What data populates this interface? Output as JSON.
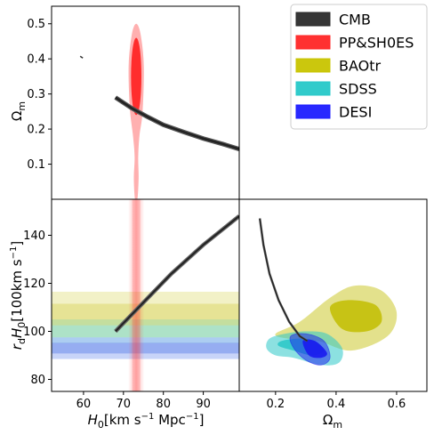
{
  "chart_data": [
    {
      "panel": "top-left",
      "type": "contour",
      "xlim": [
        52,
        99
      ],
      "ylim": [
        0.0,
        0.55
      ],
      "yticks": [
        0.1,
        0.2,
        0.3,
        0.4,
        0.5
      ],
      "ytick_labels": [
        "0.1",
        "0.2",
        "0.3",
        "0.4",
        "0.5"
      ],
      "ylabel_main": "Ω",
      "ylabel_sub": "m",
      "series": [
        {
          "name": "CMB",
          "kind": "band",
          "center": [
            [
              68,
              0.29
            ],
            [
              72,
              0.26
            ],
            [
              76,
              0.235
            ],
            [
              80,
              0.212
            ],
            [
              85,
              0.192
            ],
            [
              90,
              0.173
            ],
            [
              95,
              0.157
            ],
            [
              99,
              0.143
            ]
          ],
          "halfwidth": 0.004
        },
        {
          "name": "PP&SH0ES",
          "kind": "filled",
          "ellipse_68": {
            "cx": 73.2,
            "cy": 0.35,
            "rx": 1.3,
            "ry": 0.11
          },
          "outer_95": [
            [
              73.2,
              0.5
            ],
            [
              74.3,
              0.47
            ],
            [
              75.1,
              0.38
            ],
            [
              74.8,
              0.25
            ],
            [
              74.0,
              0.18
            ],
            [
              73.7,
              0.12
            ],
            [
              73.8,
              0.06
            ],
            [
              73.5,
              0.0
            ],
            [
              72.9,
              0.0
            ],
            [
              72.6,
              0.06
            ],
            [
              72.8,
              0.12
            ],
            [
              72.4,
              0.18
            ],
            [
              71.6,
              0.26
            ],
            [
              71.3,
              0.38
            ],
            [
              72.1,
              0.47
            ]
          ]
        }
      ],
      "annotations_points": [
        [
          59.5,
          0.405
        ]
      ]
    },
    {
      "panel": "bottom-left",
      "type": "contour",
      "xlim": [
        52,
        99
      ],
      "ylim": [
        75,
        155
      ],
      "xticks": [
        60,
        70,
        80,
        90
      ],
      "xtick_labels": [
        "60",
        "70",
        "80",
        "90"
      ],
      "yticks": [
        80,
        100,
        120,
        140
      ],
      "ytick_labels": [
        "80",
        "100",
        "120",
        "140"
      ],
      "xlabel_main": "H",
      "xlabel_sub": "0",
      "xlabel_unit": "[km s",
      "xlabel_unit_sup1": "−1",
      "xlabel_unit_mid": " Mpc",
      "xlabel_unit_sup2": "−1",
      "xlabel_unit_end": "]",
      "ylabel_r": "r",
      "ylabel_d": "d",
      "ylabel_H": "H",
      "ylabel_0": "0",
      "ylabel_unit": "[100km s",
      "ylabel_unit_sup": "−1",
      "ylabel_unit_end": "]",
      "series": [
        {
          "name": "CMB",
          "kind": "band",
          "center": [
            [
              68,
              100
            ],
            [
              75,
              112
            ],
            [
              82,
              124
            ],
            [
              90,
              136
            ],
            [
              99,
              148
            ]
          ],
          "halfwidth": 1.2
        },
        {
          "name": "PP&SH0ES",
          "kind": "vband",
          "center": 73.2,
          "half68": 1.0,
          "half95": 2.0
        },
        {
          "name": "BAOtr",
          "kind": "hband",
          "center": 107,
          "half68": 4.5,
          "half95": 9.5
        },
        {
          "name": "SDSS",
          "kind": "hband",
          "center": 100,
          "half68": 2.5,
          "half95": 5
        },
        {
          "name": "DESI",
          "kind": "hband",
          "center": 93,
          "half68": 2.2,
          "half95": 4.5
        }
      ]
    },
    {
      "panel": "bottom-right",
      "type": "contour",
      "xlim": [
        0.08,
        0.7
      ],
      "ylim": [
        75,
        155
      ],
      "xticks": [
        0.2,
        0.4,
        0.6
      ],
      "xtick_labels": [
        "0.2",
        "0.4",
        "0.6"
      ],
      "xlabel_main": "Ω",
      "xlabel_sub": "m",
      "series": [
        {
          "name": "CMB",
          "kind": "band",
          "center": [
            [
              0.148,
              147
            ],
            [
              0.16,
              136
            ],
            [
              0.18,
              124
            ],
            [
              0.21,
              113
            ],
            [
              0.245,
              104
            ],
            [
              0.28,
              98
            ],
            [
              0.305,
              96
            ]
          ],
          "halfwidth": 0.6
        },
        {
          "name": "BAOtr",
          "kind": "contour",
          "outer": [
            [
              0.2,
              99
            ],
            [
              0.28,
              104
            ],
            [
              0.38,
              114
            ],
            [
              0.46,
              119
            ],
            [
              0.55,
              117
            ],
            [
              0.6,
              108
            ],
            [
              0.57,
              98
            ],
            [
              0.45,
              92
            ],
            [
              0.34,
              96
            ],
            [
              0.24,
              97
            ]
          ],
          "inner": [
            [
              0.38,
              110
            ],
            [
              0.44,
              113
            ],
            [
              0.53,
              111
            ],
            [
              0.55,
              104
            ],
            [
              0.5,
              100
            ],
            [
              0.42,
              101
            ]
          ]
        },
        {
          "name": "SDSS",
          "kind": "contour",
          "outer": [
            [
              0.18,
              97
            ],
            [
              0.23,
              99
            ],
            [
              0.3,
              100
            ],
            [
              0.37,
              99
            ],
            [
              0.42,
              93
            ],
            [
              0.41,
              87
            ],
            [
              0.35,
              86
            ],
            [
              0.26,
              89
            ],
            [
              0.2,
              90
            ],
            [
              0.17,
              93
            ]
          ],
          "inner": [
            [
              0.22,
              96
            ],
            [
              0.28,
              97
            ],
            [
              0.33,
              96
            ],
            [
              0.36,
              92
            ],
            [
              0.32,
              90
            ],
            [
              0.26,
              92
            ],
            [
              0.21,
              94
            ]
          ]
        },
        {
          "name": "DESI",
          "kind": "contour",
          "outer": [
            [
              0.25,
              98
            ],
            [
              0.3,
              99
            ],
            [
              0.36,
              96
            ],
            [
              0.38,
              89
            ],
            [
              0.35,
              86
            ],
            [
              0.3,
              88
            ],
            [
              0.26,
              93
            ]
          ],
          "inner": [
            [
              0.29,
              96
            ],
            [
              0.33,
              96
            ],
            [
              0.37,
              91
            ],
            [
              0.35,
              89
            ],
            [
              0.31,
              90
            ]
          ]
        }
      ]
    }
  ],
  "legend": {
    "entries": [
      {
        "label": "CMB",
        "color": "#2b2b2b"
      },
      {
        "label": "PP&SH0ES",
        "color": "#ff2626"
      },
      {
        "label": "BAOtr",
        "color": "#c8c400"
      },
      {
        "label": "SDSS",
        "color": "#26c8c8"
      },
      {
        "label": "DESI",
        "color": "#1c1cff"
      }
    ]
  },
  "colors": {
    "CMB": "#333333",
    "PP&SH0ES": "#ff3030",
    "BAOtr": "#c2bd00",
    "SDSS": "#2ec9c9",
    "DESI": "#1a1aee"
  }
}
